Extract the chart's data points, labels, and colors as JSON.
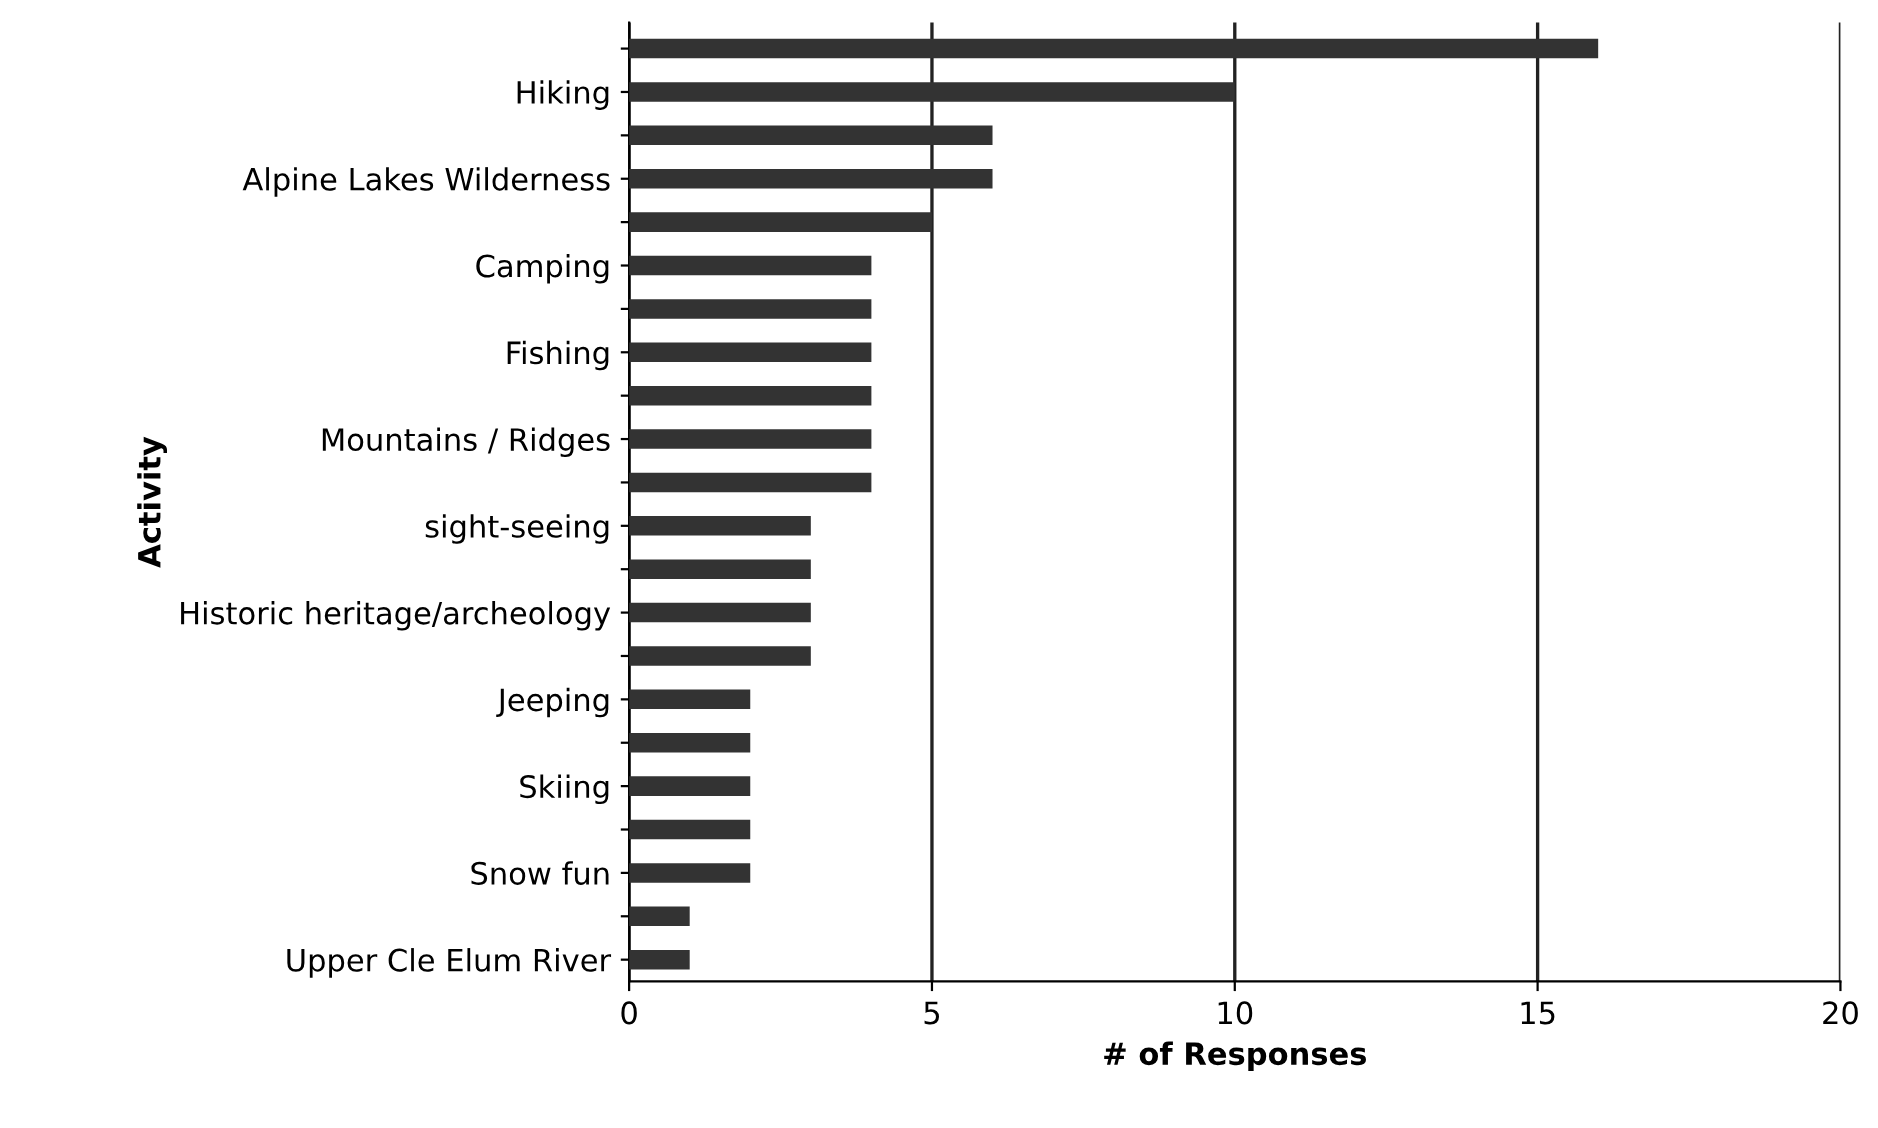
{
  "chart_data": {
    "type": "bar",
    "orientation": "horizontal",
    "xlabel": "# of Responses",
    "ylabel": "Activity",
    "categories": [
      null,
      "Hiking",
      null,
      "Alpine Lakes Wilderness",
      null,
      "Camping",
      null,
      "Fishing",
      null,
      "Mountains / Ridges",
      null,
      "sight-seeing",
      null,
      "Historic heritage/archeology",
      null,
      "Jeeping",
      null,
      "Skiing",
      null,
      "Snow fun",
      null,
      "Upper Cle Elum River"
    ],
    "values": [
      16,
      10,
      6,
      6,
      5,
      4,
      4,
      4,
      4,
      4,
      4,
      3,
      3,
      3,
      3,
      2,
      2,
      2,
      2,
      2,
      1,
      1
    ],
    "color": "#333333",
    "xlim": [
      0,
      20
    ],
    "xticks": [
      0,
      5,
      10,
      15,
      20
    ],
    "grid": "x"
  }
}
